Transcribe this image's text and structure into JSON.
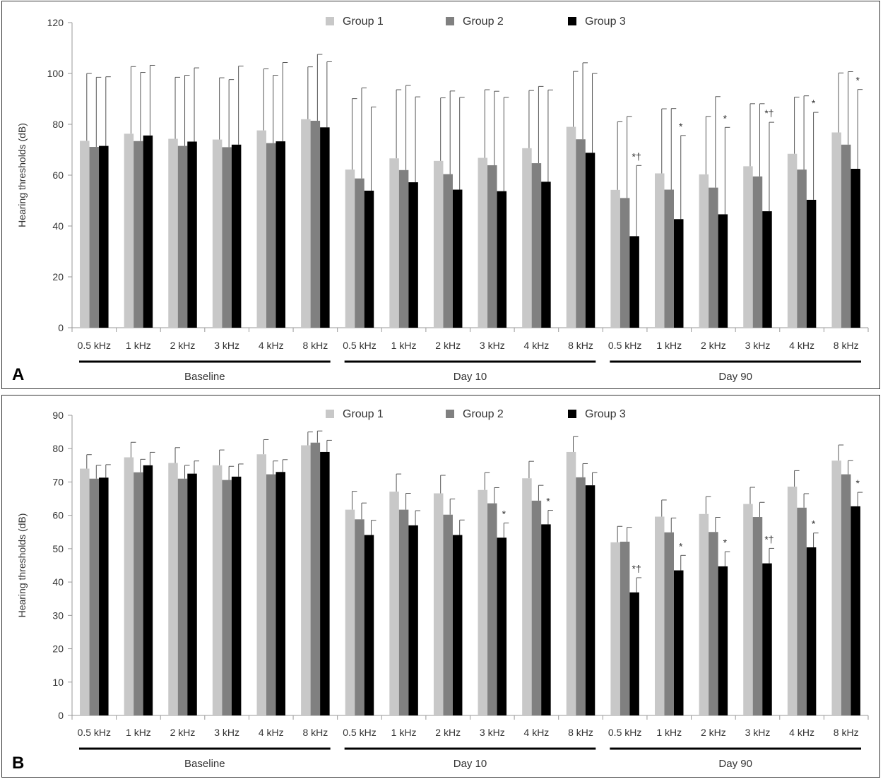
{
  "legend": [
    {
      "name": "Group 1",
      "color": "#c8c8c8"
    },
    {
      "name": "Group 2",
      "color": "#808080"
    },
    {
      "name": "Group 3",
      "color": "#000000"
    }
  ],
  "chart_data": [
    {
      "panel_label": "A",
      "type": "bar",
      "ylabel": "Hearing thresholds (dB)",
      "ylim": [
        0,
        120
      ],
      "yticks": [
        0,
        20,
        40,
        60,
        80,
        100,
        120
      ],
      "categories": [
        "0.5 kHz",
        "1 kHz",
        "2 kHz",
        "3 kHz",
        "4 kHz",
        "8 kHz",
        "0.5 kHz",
        "1 kHz",
        "2 kHz",
        "3 kHz",
        "4 kHz",
        "8 kHz",
        "0.5 kHz",
        "1 kHz",
        "2 kHz",
        "3 kHz",
        "4 kHz",
        "8 kHz"
      ],
      "groups": [
        {
          "label": "Baseline",
          "start": 0,
          "end": 5
        },
        {
          "label": "Day 10",
          "start": 6,
          "end": 11
        },
        {
          "label": "Day 90",
          "start": 12,
          "end": 17
        }
      ],
      "series": [
        {
          "name": "Group 1",
          "values": [
            73.5,
            76.3,
            74.3,
            74.0,
            77.6,
            82.0,
            62.2,
            66.6,
            65.6,
            66.8,
            70.6,
            79.0,
            54.2,
            60.7,
            60.3,
            63.5,
            68.4,
            76.8
          ],
          "error": [
            26.5,
            26.4,
            24.2,
            24.3,
            24.2,
            20.6,
            27.9,
            27.0,
            24.8,
            26.8,
            22.7,
            21.8,
            26.8,
            25.4,
            22.8,
            24.6,
            22.3,
            23.4
          ]
        },
        {
          "name": "Group 2",
          "values": [
            71.1,
            73.4,
            71.5,
            71.0,
            72.6,
            81.4,
            58.7,
            62.0,
            60.4,
            63.9,
            64.7,
            74.1,
            51.0,
            54.3,
            55.1,
            59.5,
            62.2,
            72.0
          ],
          "error": [
            27.4,
            27.0,
            27.8,
            26.6,
            26.7,
            26.1,
            35.6,
            33.3,
            32.7,
            29.1,
            30.2,
            30.1,
            32.1,
            31.9,
            35.8,
            28.6,
            29.0,
            28.7
          ]
        },
        {
          "name": "Group 3",
          "values": [
            71.5,
            75.6,
            73.2,
            72.0,
            73.3,
            78.8,
            53.9,
            57.2,
            54.3,
            53.7,
            57.4,
            68.8,
            36.0,
            42.7,
            44.6,
            45.8,
            50.3,
            62.5
          ],
          "error": [
            27.2,
            27.6,
            29.0,
            30.9,
            31.0,
            25.8,
            32.9,
            33.6,
            36.3,
            36.9,
            36.1,
            31.2,
            27.8,
            32.9,
            34.2,
            35.0,
            34.4,
            31.2
          ]
        }
      ],
      "annotations": [
        {
          "category": 12,
          "text": "*†"
        },
        {
          "category": 13,
          "text": "*"
        },
        {
          "category": 14,
          "text": "*"
        },
        {
          "category": 15,
          "text": "*†"
        },
        {
          "category": 16,
          "text": "*"
        },
        {
          "category": 17,
          "text": "*"
        }
      ]
    },
    {
      "panel_label": "B",
      "type": "bar",
      "ylabel": "Hearing thresholds (dB)",
      "ylim": [
        0,
        90
      ],
      "yticks": [
        0,
        10,
        20,
        30,
        40,
        50,
        60,
        70,
        80,
        90
      ],
      "categories": [
        "0.5 kHz",
        "1 kHz",
        "2 kHz",
        "3 kHz",
        "4 kHz",
        "8 kHz",
        "0.5 kHz",
        "1 kHz",
        "2 kHz",
        "3 kHz",
        "4 kHz",
        "8 kHz",
        "0.5 kHz",
        "1 kHz",
        "2 kHz",
        "3 kHz",
        "4 kHz",
        "8 kHz"
      ],
      "groups": [
        {
          "label": "Baseline",
          "start": 0,
          "end": 5
        },
        {
          "label": "Day 10",
          "start": 6,
          "end": 11
        },
        {
          "label": "Day 90",
          "start": 12,
          "end": 17
        }
      ],
      "series": [
        {
          "name": "Group 1",
          "values": [
            74.0,
            77.4,
            75.7,
            75.0,
            78.3,
            81.0,
            61.7,
            67.1,
            66.6,
            67.6,
            71.1,
            79.0,
            51.9,
            59.6,
            60.4,
            63.4,
            68.6,
            76.4
          ],
          "error": [
            4.2,
            4.5,
            4.6,
            4.6,
            4.4,
            4.0,
            5.5,
            5.3,
            5.4,
            5.2,
            5.1,
            4.6,
            4.8,
            5.0,
            5.2,
            5.0,
            4.8,
            4.7
          ]
        },
        {
          "name": "Group 2",
          "values": [
            71.0,
            72.9,
            71.0,
            70.6,
            72.3,
            81.8,
            58.8,
            61.7,
            60.2,
            63.6,
            64.4,
            71.4,
            52.1,
            54.9,
            55.0,
            59.5,
            62.3,
            72.3
          ],
          "error": [
            4.0,
            3.9,
            4.0,
            4.1,
            4.0,
            3.5,
            4.9,
            4.9,
            4.7,
            4.7,
            4.6,
            4.1,
            4.3,
            4.3,
            4.4,
            4.4,
            4.2,
            4.1
          ]
        },
        {
          "name": "Group 3",
          "values": [
            71.3,
            75.0,
            72.5,
            71.6,
            73.0,
            79.0,
            54.1,
            57.0,
            54.1,
            53.3,
            57.3,
            69.0,
            36.9,
            43.5,
            44.7,
            45.6,
            50.4,
            62.7
          ],
          "error": [
            3.9,
            3.9,
            3.8,
            3.8,
            3.7,
            3.5,
            4.4,
            4.4,
            4.5,
            4.4,
            4.2,
            3.8,
            4.4,
            4.5,
            4.4,
            4.5,
            4.3,
            4.2
          ]
        }
      ],
      "annotations": [
        {
          "category": 9,
          "text": "*"
        },
        {
          "category": 10,
          "text": "*"
        },
        {
          "category": 12,
          "text": "*†"
        },
        {
          "category": 13,
          "text": "*"
        },
        {
          "category": 14,
          "text": "*"
        },
        {
          "category": 15,
          "text": "*†"
        },
        {
          "category": 16,
          "text": "*"
        },
        {
          "category": 17,
          "text": "*"
        }
      ]
    }
  ]
}
